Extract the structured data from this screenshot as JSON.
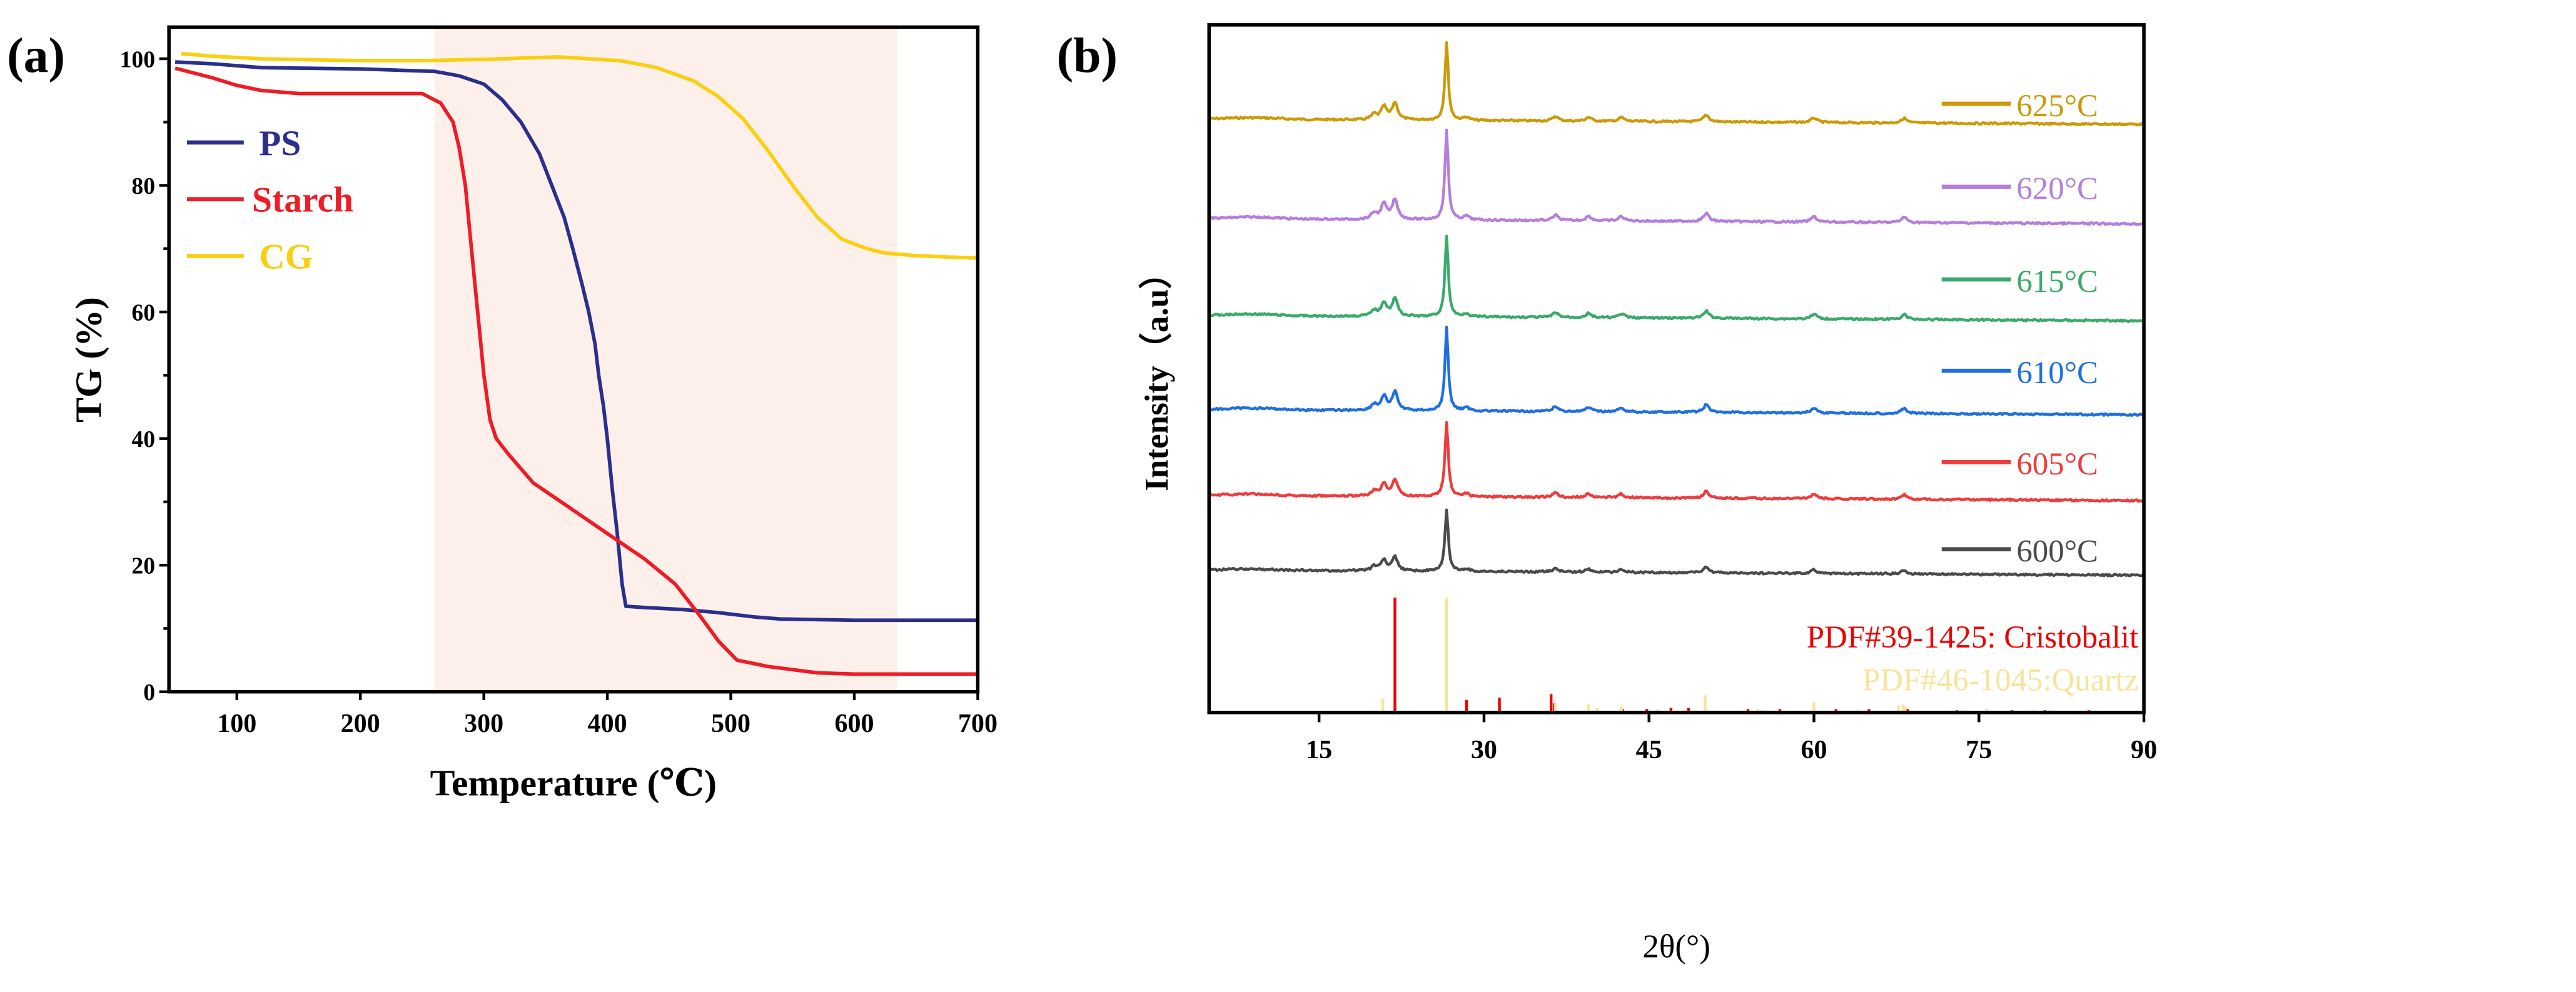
{
  "chart_data": [
    {
      "panel_label": "(a)",
      "type": "line",
      "xlabel": "Temperature (℃)",
      "ylabel": "TG (%)",
      "xlim": [
        45,
        700
      ],
      "ylim": [
        0,
        105
      ],
      "xticks": [
        100,
        200,
        300,
        400,
        500,
        600,
        700
      ],
      "yticks": [
        0,
        20,
        40,
        60,
        80,
        100
      ],
      "shaded_region": {
        "x": [
          260,
          635
        ],
        "color": "#fdf0ea"
      },
      "legend_position": "upper-left",
      "series": [
        {
          "name": "PS",
          "color": "#2b2f8c",
          "x": [
            50,
            80,
            120,
            200,
            260,
            280,
            300,
            315,
            330,
            345,
            355,
            365,
            372,
            380,
            385,
            390,
            393,
            397,
            400,
            404,
            408,
            412,
            415,
            430,
            460,
            490,
            520,
            540,
            600,
            700
          ],
          "y": [
            99.5,
            99.2,
            98.6,
            98.4,
            98,
            97.3,
            96,
            93.5,
            90,
            85,
            80,
            75,
            70,
            64,
            60,
            55,
            50,
            45,
            40,
            32,
            25,
            17,
            13.5,
            13.3,
            13,
            12.5,
            11.8,
            11.5,
            11.3,
            11.3
          ]
        },
        {
          "name": "Starch",
          "color": "#ee1c25",
          "x": [
            50,
            80,
            100,
            120,
            150,
            250,
            265,
            275,
            280,
            285,
            290,
            295,
            300,
            305,
            310,
            320,
            340,
            370,
            400,
            430,
            455,
            475,
            490,
            505,
            530,
            570,
            600,
            700
          ],
          "y": [
            98.5,
            97,
            95.8,
            95,
            94.5,
            94.5,
            93,
            90,
            86,
            80,
            70,
            60,
            50,
            43,
            40,
            37.5,
            33,
            29,
            25,
            21,
            17,
            12,
            8,
            5,
            4,
            3,
            2.8,
            2.8
          ]
        },
        {
          "name": "CG",
          "color": "#f9cf10",
          "x": [
            55,
            80,
            120,
            200,
            250,
            300,
            360,
            410,
            440,
            470,
            490,
            510,
            530,
            550,
            570,
            590,
            610,
            625,
            650,
            700
          ],
          "y": [
            100.8,
            100.4,
            100,
            99.7,
            99.7,
            99.9,
            100.3,
            99.7,
            98.6,
            96.5,
            94,
            90.5,
            85.5,
            80,
            75,
            71.5,
            70,
            69.3,
            68.9,
            68.5
          ]
        }
      ]
    },
    {
      "panel_label": "(b)",
      "type": "line",
      "xlabel": "2θ(°)",
      "ylabel": "Intensity（a.u）",
      "xlim": [
        5,
        90
      ],
      "xticks": [
        15,
        30,
        45,
        60,
        75,
        90
      ],
      "legend_position": "right",
      "series": [
        {
          "name": "625°C",
          "color": "#cc9a06",
          "offset": 5.0,
          "peak_scale": 1.0
        },
        {
          "name": "620°C",
          "color": "#b57edc",
          "offset": 4.0,
          "peak_scale": 1.16
        },
        {
          "name": "615°C",
          "color": "#3aaa6a",
          "offset": 3.0,
          "peak_scale": 1.04
        },
        {
          "name": "610°C",
          "color": "#1f6fe0",
          "offset": 2.0,
          "peak_scale": 1.07
        },
        {
          "name": "605°C",
          "color": "#ee3b3b",
          "offset": 1.1,
          "peak_scale": 0.96
        },
        {
          "name": "600°C",
          "color": "#4a4a4a",
          "offset": 0.35,
          "peak_scale": 0.8
        }
      ],
      "peaks_2theta": [
        20.0,
        20.9,
        21.9,
        26.6,
        28.4,
        36.5,
        39.5,
        42.5,
        50.2,
        60.0,
        68.2
      ],
      "peaks_rel_intensity": [
        0.07,
        0.17,
        0.22,
        1.0,
        0.04,
        0.06,
        0.05,
        0.05,
        0.09,
        0.06,
        0.06
      ],
      "references": [
        {
          "name": "PDF#39-1425: Cristobalit",
          "color": "#ee0000",
          "x": [
            21.9,
            28.4,
            31.4,
            36.1,
            36.4,
            42.6,
            44.8,
            47.0,
            48.6,
            54.0,
            56.9,
            62.0,
            65.0,
            68.5,
            73.0,
            78.0,
            81.0,
            85.0
          ],
          "y": [
            100,
            11,
            13,
            16,
            8,
            3,
            3,
            4,
            4,
            3,
            3,
            3,
            3,
            3,
            2,
            2,
            2,
            2
          ]
        },
        {
          "name": "PDF#46-1045:Quartz",
          "color": "#f7e49a",
          "x": [
            20.8,
            26.6,
            36.5,
            39.5,
            40.3,
            42.5,
            45.8,
            50.1,
            54.9,
            55.3,
            60.0,
            64.0,
            67.7,
            68.1,
            68.3,
            73.5,
            75.7,
            79.9,
            81.5
          ],
          "y": [
            12,
            100,
            8,
            7,
            4,
            5,
            3,
            15,
            3,
            2,
            9,
            2,
            6,
            7,
            5,
            2,
            3,
            2,
            2
          ]
        }
      ]
    }
  ]
}
